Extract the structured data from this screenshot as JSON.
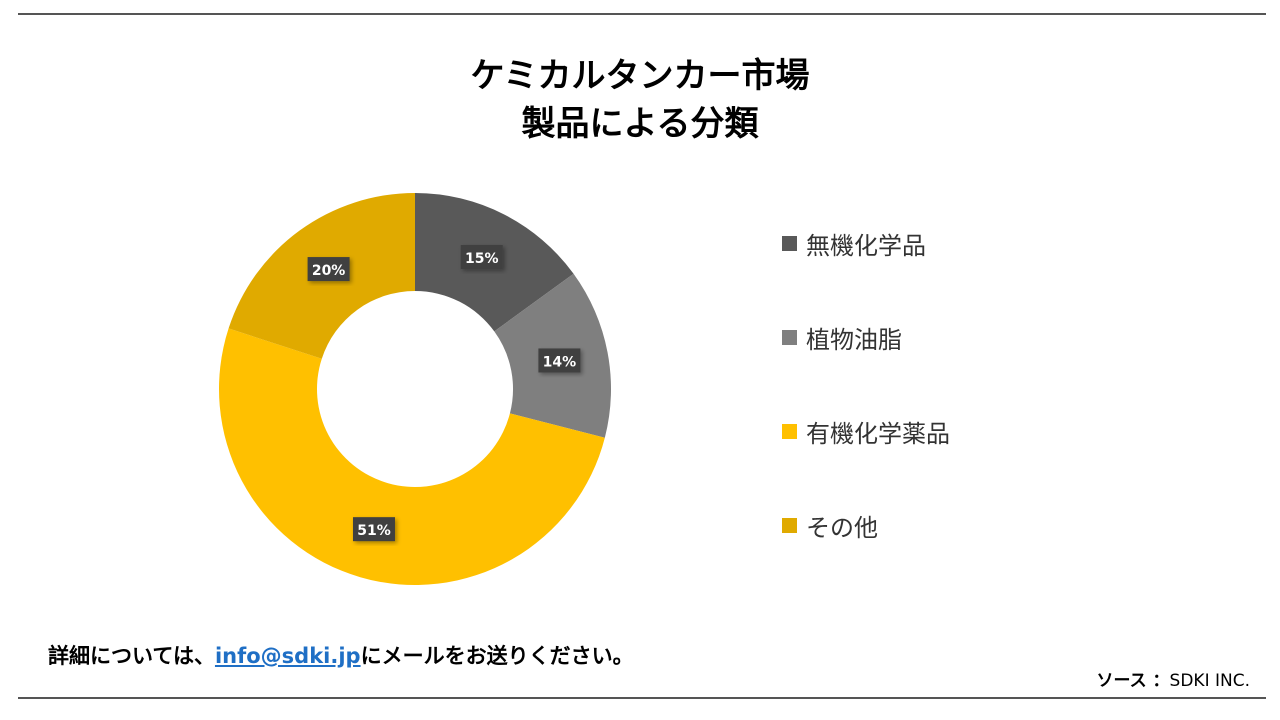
{
  "header": {
    "title_line1": "ケミカルタンカー市場",
    "title_line2": "製品による分類"
  },
  "chart_data": {
    "type": "pie",
    "donut": true,
    "categories": [
      "無機化学品",
      "植物油脂",
      "有機化学薬品",
      "その他"
    ],
    "values": [
      15,
      14,
      51,
      20
    ],
    "data_labels": [
      "15%",
      "14%",
      "51%",
      "20%"
    ],
    "colors": [
      "#595959",
      "#7f7f7f",
      "#ffc000",
      "#e0aa00"
    ],
    "legend_position": "right"
  },
  "footer": {
    "note_prefix": "詳細については、",
    "email": "info@sdki.jp",
    "note_suffix": "にメールをお送りください。",
    "source_label": "ソース ：",
    "source_value": "SDKI INC."
  }
}
